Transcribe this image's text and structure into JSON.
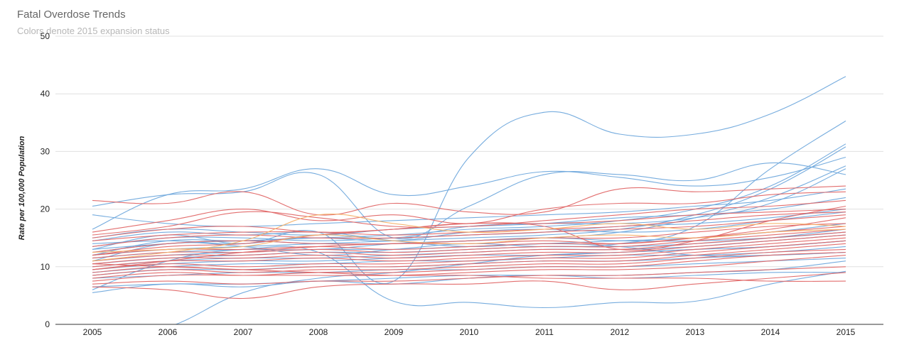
{
  "chart_data": {
    "type": "line",
    "title": "Fatal Overdose Trends",
    "subtitle": "Colors denote 2015 expansion status",
    "xlabel": "",
    "ylabel": "Rate per 100,000 Population",
    "x": [
      2005,
      2006,
      2007,
      2008,
      2009,
      2010,
      2011,
      2012,
      2013,
      2014,
      2015
    ],
    "xlim": [
      2005,
      2015
    ],
    "ylim": [
      0,
      50
    ],
    "yticks": [
      0,
      10,
      20,
      30,
      40,
      50
    ],
    "grid": true,
    "legend": "none",
    "colors": {
      "blue": "#6fa8dc",
      "red": "#e06666",
      "orange": "#f6b26b",
      "gridline": "#e0e0e0",
      "axis": "#333333"
    },
    "series": [
      {
        "color": "blue",
        "values": [
          16.5,
          22.5,
          23.5,
          27.0,
          22.5,
          24.0,
          26.5,
          25.5,
          24.0,
          25.5,
          29.0
        ]
      },
      {
        "color": "blue",
        "values": [
          20.5,
          22.5,
          23.0,
          26.0,
          15.0,
          20.5,
          26.0,
          26.0,
          25.0,
          28.0,
          26.0
        ]
      },
      {
        "color": "blue",
        "values": [
          13.0,
          15.5,
          14.0,
          16.0,
          7.5,
          29.0,
          36.8,
          33.0,
          33.0,
          36.5,
          43.0
        ]
      },
      {
        "color": "blue",
        "values": [
          11.0,
          14.0,
          13.5,
          12.0,
          13.0,
          14.0,
          13.5,
          14.0,
          17.0,
          27.0,
          35.3
        ]
      },
      {
        "color": "blue",
        "values": [
          12.5,
          14.0,
          14.5,
          15.0,
          15.5,
          16.5,
          17.0,
          18.0,
          20.0,
          24.0,
          31.3
        ]
      },
      {
        "color": "blue",
        "values": [
          12.0,
          13.0,
          13.5,
          14.0,
          14.5,
          15.0,
          15.5,
          16.5,
          19.0,
          23.5,
          30.8
        ]
      },
      {
        "color": "blue",
        "values": [
          11.5,
          12.5,
          13.0,
          13.0,
          14.0,
          14.5,
          15.0,
          16.0,
          18.5,
          22.0,
          27.5
        ]
      },
      {
        "color": "blue",
        "values": [
          14.0,
          14.5,
          14.0,
          15.5,
          15.0,
          17.0,
          17.5,
          17.5,
          18.5,
          21.0,
          27.0
        ]
      },
      {
        "color": "blue",
        "values": [
          19.0,
          17.5,
          17.0,
          17.5,
          18.0,
          18.5,
          19.0,
          19.5,
          20.5,
          21.5,
          23.5
        ]
      },
      {
        "color": "blue",
        "values": [
          15.0,
          16.5,
          16.0,
          15.5,
          16.5,
          17.0,
          17.5,
          18.5,
          19.0,
          20.0,
          22.0
        ]
      },
      {
        "color": "blue",
        "values": [
          13.5,
          15.0,
          15.0,
          14.5,
          15.0,
          15.5,
          16.0,
          17.0,
          17.5,
          18.5,
          20.0
        ]
      },
      {
        "color": "blue",
        "values": [
          12.0,
          14.5,
          14.5,
          15.0,
          14.5,
          16.0,
          16.5,
          16.0,
          16.5,
          18.0,
          19.5
        ]
      },
      {
        "color": "blue",
        "values": [
          11.0,
          12.0,
          12.5,
          13.0,
          13.0,
          13.5,
          14.0,
          14.5,
          15.0,
          16.0,
          17.5
        ]
      },
      {
        "color": "blue",
        "values": [
          10.5,
          11.5,
          12.0,
          12.5,
          12.5,
          13.0,
          13.5,
          13.5,
          14.0,
          15.0,
          16.5
        ]
      },
      {
        "color": "blue",
        "values": [
          10.0,
          11.0,
          11.5,
          11.5,
          12.0,
          12.5,
          13.0,
          13.0,
          13.5,
          14.5,
          15.5
        ]
      },
      {
        "color": "blue",
        "values": [
          9.5,
          10.5,
          11.0,
          11.0,
          11.5,
          12.0,
          12.0,
          12.5,
          13.0,
          13.5,
          14.5
        ]
      },
      {
        "color": "blue",
        "values": [
          9.0,
          10.0,
          10.5,
          10.5,
          11.0,
          11.0,
          11.5,
          12.0,
          12.0,
          12.5,
          13.5
        ]
      },
      {
        "color": "blue",
        "values": [
          8.5,
          9.5,
          9.5,
          10.0,
          10.0,
          10.5,
          11.0,
          11.0,
          11.5,
          12.0,
          12.5
        ]
      },
      {
        "color": "blue",
        "values": [
          8.0,
          8.5,
          9.0,
          9.0,
          9.5,
          9.5,
          10.0,
          10.0,
          10.5,
          11.0,
          11.5
        ]
      },
      {
        "color": "blue",
        "values": [
          6.5,
          7.0,
          7.0,
          7.5,
          8.0,
          8.5,
          8.5,
          8.5,
          9.0,
          9.5,
          11.0
        ]
      },
      {
        "color": "blue",
        "values": [
          5.5,
          7.0,
          6.5,
          7.5,
          7.0,
          8.0,
          8.5,
          8.0,
          8.5,
          9.0,
          9.0
        ]
      },
      {
        "color": "blue",
        "values": [
          6.0,
          11.0,
          13.0,
          12.5,
          4.0,
          3.8,
          2.9,
          3.8,
          4.0,
          7.0,
          9.2
        ]
      },
      {
        "color": "blue",
        "values": [
          -3.0,
          -0.5,
          5.5,
          8.0,
          9.0,
          10.5,
          12.0,
          12.5,
          13.0,
          13.5,
          14.5
        ]
      },
      {
        "color": "blue",
        "values": [
          14.5,
          16.0,
          15.5,
          16.0,
          14.5,
          13.5,
          14.0,
          13.5,
          12.0,
          12.0,
          12.5
        ]
      },
      {
        "color": "blue",
        "values": [
          13.0,
          14.0,
          14.5,
          14.0,
          14.0,
          14.5,
          15.0,
          14.5,
          14.5,
          15.0,
          16.0
        ]
      },
      {
        "color": "red",
        "values": [
          21.5,
          21.0,
          23.0,
          19.0,
          21.0,
          19.5,
          19.5,
          23.5,
          23.0,
          23.5,
          24.0
        ]
      },
      {
        "color": "red",
        "values": [
          16.0,
          18.0,
          20.0,
          18.0,
          19.0,
          17.5,
          20.0,
          21.0,
          21.0,
          22.5,
          23.0
        ]
      },
      {
        "color": "red",
        "values": [
          15.5,
          17.0,
          19.5,
          18.5,
          17.0,
          17.0,
          18.0,
          19.0,
          20.0,
          20.5,
          21.5
        ]
      },
      {
        "color": "red",
        "values": [
          15.0,
          16.5,
          17.0,
          16.0,
          16.5,
          17.5,
          17.5,
          18.0,
          19.0,
          19.5,
          20.0
        ]
      },
      {
        "color": "red",
        "values": [
          14.5,
          15.5,
          16.0,
          16.0,
          15.5,
          16.0,
          16.5,
          17.0,
          18.0,
          19.0,
          19.5
        ]
      },
      {
        "color": "red",
        "values": [
          13.5,
          15.0,
          15.5,
          15.0,
          15.0,
          15.5,
          16.0,
          16.5,
          17.0,
          18.0,
          19.0
        ]
      },
      {
        "color": "red",
        "values": [
          12.5,
          14.0,
          14.5,
          14.0,
          14.0,
          14.5,
          15.0,
          15.0,
          16.0,
          17.0,
          17.5
        ]
      },
      {
        "color": "red",
        "values": [
          12.0,
          13.0,
          13.0,
          13.5,
          13.0,
          13.5,
          14.0,
          14.0,
          15.0,
          16.0,
          17.0
        ]
      },
      {
        "color": "red",
        "values": [
          11.5,
          12.5,
          12.5,
          13.0,
          12.5,
          13.0,
          13.5,
          13.5,
          14.5,
          15.5,
          16.5
        ]
      },
      {
        "color": "red",
        "values": [
          11.0,
          12.0,
          12.0,
          12.5,
          12.0,
          12.5,
          13.0,
          13.0,
          14.0,
          15.0,
          16.0
        ]
      },
      {
        "color": "red",
        "values": [
          10.5,
          11.5,
          11.5,
          12.0,
          11.5,
          12.0,
          12.5,
          12.5,
          13.5,
          14.5,
          15.5
        ]
      },
      {
        "color": "red",
        "values": [
          10.0,
          11.0,
          11.0,
          11.5,
          11.0,
          11.5,
          12.0,
          12.0,
          13.0,
          14.0,
          15.0
        ]
      },
      {
        "color": "red",
        "values": [
          9.5,
          10.5,
          10.0,
          10.5,
          10.5,
          11.0,
          11.5,
          11.5,
          12.5,
          13.5,
          14.5
        ]
      },
      {
        "color": "red",
        "values": [
          9.0,
          10.0,
          9.5,
          10.0,
          10.0,
          10.5,
          11.0,
          11.0,
          12.0,
          13.0,
          14.0
        ]
      },
      {
        "color": "red",
        "values": [
          8.5,
          9.5,
          9.0,
          9.5,
          9.5,
          10.0,
          10.5,
          10.5,
          11.5,
          12.5,
          13.0
        ]
      },
      {
        "color": "red",
        "values": [
          8.0,
          9.0,
          8.5,
          9.0,
          9.0,
          9.5,
          10.0,
          10.0,
          11.0,
          12.0,
          12.5
        ]
      },
      {
        "color": "red",
        "values": [
          7.5,
          8.5,
          8.5,
          8.5,
          8.5,
          9.0,
          9.5,
          9.5,
          10.0,
          11.0,
          12.0
        ]
      },
      {
        "color": "red",
        "values": [
          7.0,
          7.5,
          7.0,
          7.5,
          7.5,
          8.0,
          8.5,
          8.5,
          9.0,
          9.5,
          10.0
        ]
      },
      {
        "color": "red",
        "values": [
          6.5,
          6.0,
          4.5,
          6.5,
          7.0,
          7.0,
          7.5,
          6.0,
          7.0,
          8.0,
          9.0
        ]
      },
      {
        "color": "red",
        "values": [
          10.5,
          10.0,
          9.5,
          9.0,
          8.5,
          8.5,
          8.0,
          8.0,
          8.0,
          7.5,
          7.5
        ]
      },
      {
        "color": "red",
        "values": [
          12.0,
          13.5,
          14.0,
          15.5,
          16.5,
          17.5,
          17.0,
          13.0,
          14.5,
          18.0,
          20.5
        ]
      },
      {
        "color": "red",
        "values": [
          9.5,
          11.0,
          12.5,
          13.5,
          14.0,
          14.0,
          14.5,
          14.0,
          15.0,
          16.5,
          18.5
        ]
      },
      {
        "color": "orange",
        "values": [
          11.0,
          12.5,
          14.5,
          19.0,
          17.5,
          16.0,
          16.5,
          17.5,
          16.5,
          17.5,
          17.0
        ]
      },
      {
        "color": "orange",
        "values": [
          12.5,
          13.0,
          13.5,
          15.5,
          14.5,
          14.0,
          15.0,
          15.5,
          15.0,
          16.0,
          16.5
        ]
      }
    ]
  }
}
